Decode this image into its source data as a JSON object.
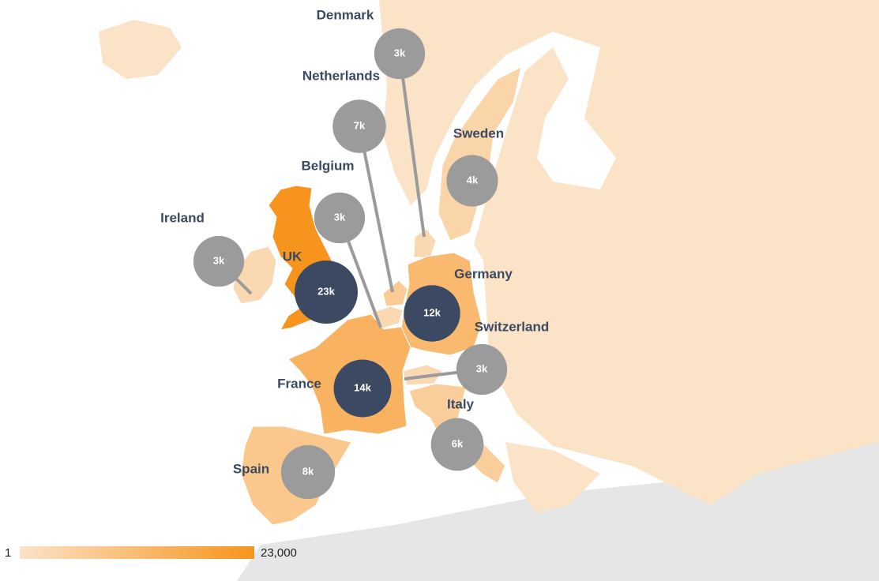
{
  "chart_data": {
    "type": "bubble-map",
    "categories": [
      "Denmark",
      "Netherlands",
      "Sweden",
      "Belgium",
      "Ireland",
      "UK",
      "Germany",
      "Switzerland",
      "France",
      "Italy",
      "Spain"
    ],
    "values": [
      3000,
      7000,
      4000,
      3000,
      3000,
      23000,
      12000,
      3000,
      14000,
      6000,
      8000
    ],
    "value_labels": [
      "3k",
      "7k",
      "4k",
      "3k",
      "3k",
      "23k",
      "12k",
      "3k",
      "14k",
      "6k",
      "8k"
    ],
    "bubble_colors": [
      "#9b9b9b",
      "#9b9b9b",
      "#9b9b9b",
      "#9b9b9b",
      "#9b9b9b",
      "#3b4a62",
      "#3b4a62",
      "#9b9b9b",
      "#3b4a62",
      "#9b9b9b",
      "#9b9b9b"
    ],
    "scale": {
      "min": 1,
      "max": {
        "value": 23000,
        "label": "23,000"
      },
      "low_color": "#fbe3c8",
      "high_color": "#f7941d"
    }
  }
}
